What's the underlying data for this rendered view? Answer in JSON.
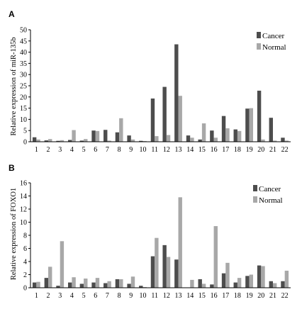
{
  "chart_data": [
    {
      "panel": "A",
      "type": "bar",
      "ylabel": "Relative expression of miR-135b",
      "ylim": [
        0,
        50
      ],
      "yticks": [
        0,
        5,
        10,
        15,
        20,
        25,
        30,
        35,
        40,
        45,
        50
      ],
      "categories": [
        "1",
        "2",
        "3",
        "4",
        "5",
        "6",
        "7",
        "8",
        "9",
        "10",
        "11",
        "12",
        "13",
        "14",
        "15",
        "16",
        "17",
        "18",
        "19",
        "20",
        "21",
        "22"
      ],
      "legend_position": "top-right",
      "series": [
        {
          "name": "Cancer",
          "color": "#4d4d4d",
          "values": [
            2.0,
            0.6,
            0.4,
            0.8,
            0.5,
            5.0,
            5.3,
            4.2,
            2.8,
            0.4,
            19.3,
            24.5,
            43.5,
            2.8,
            1.0,
            5.0,
            11.5,
            5.5,
            14.8,
            22.8,
            10.7,
            1.8
          ]
        },
        {
          "name": "Normal",
          "color": "#a8a8a8",
          "values": [
            1.0,
            1.2,
            0.7,
            5.2,
            1.2,
            4.8,
            0.5,
            10.5,
            1.0,
            0.3,
            2.5,
            3.0,
            20.5,
            1.8,
            8.2,
            1.8,
            6.0,
            4.8,
            15.0,
            1.0,
            0.5,
            0.5
          ]
        }
      ]
    },
    {
      "panel": "B",
      "type": "bar",
      "ylabel": "Relative expression of FOXO1",
      "ylim": [
        0,
        16
      ],
      "yticks": [
        0,
        2,
        4,
        6,
        8,
        10,
        12,
        14,
        16
      ],
      "categories": [
        "1",
        "2",
        "3",
        "4",
        "5",
        "6",
        "7",
        "8",
        "9",
        "10",
        "11",
        "12",
        "13",
        "14",
        "15",
        "16",
        "17",
        "18",
        "19",
        "20",
        "21",
        "22"
      ],
      "legend_position": "top-right",
      "series": [
        {
          "name": "Cancer",
          "color": "#4d4d4d",
          "values": [
            0.8,
            1.5,
            0.3,
            0.8,
            0.6,
            0.8,
            0.7,
            1.3,
            0.6,
            0.3,
            4.8,
            6.5,
            4.3,
            0.05,
            1.3,
            0.5,
            2.2,
            0.8,
            1.8,
            3.4,
            1.0,
            1.0
          ]
        },
        {
          "name": "Normal",
          "color": "#a8a8a8",
          "values": [
            0.9,
            3.2,
            7.1,
            1.6,
            1.4,
            1.5,
            1.0,
            1.3,
            1.7,
            0.1,
            7.6,
            4.7,
            13.8,
            1.2,
            0.6,
            9.4,
            3.8,
            1.5,
            2.0,
            3.3,
            0.7,
            2.6
          ]
        }
      ]
    }
  ]
}
